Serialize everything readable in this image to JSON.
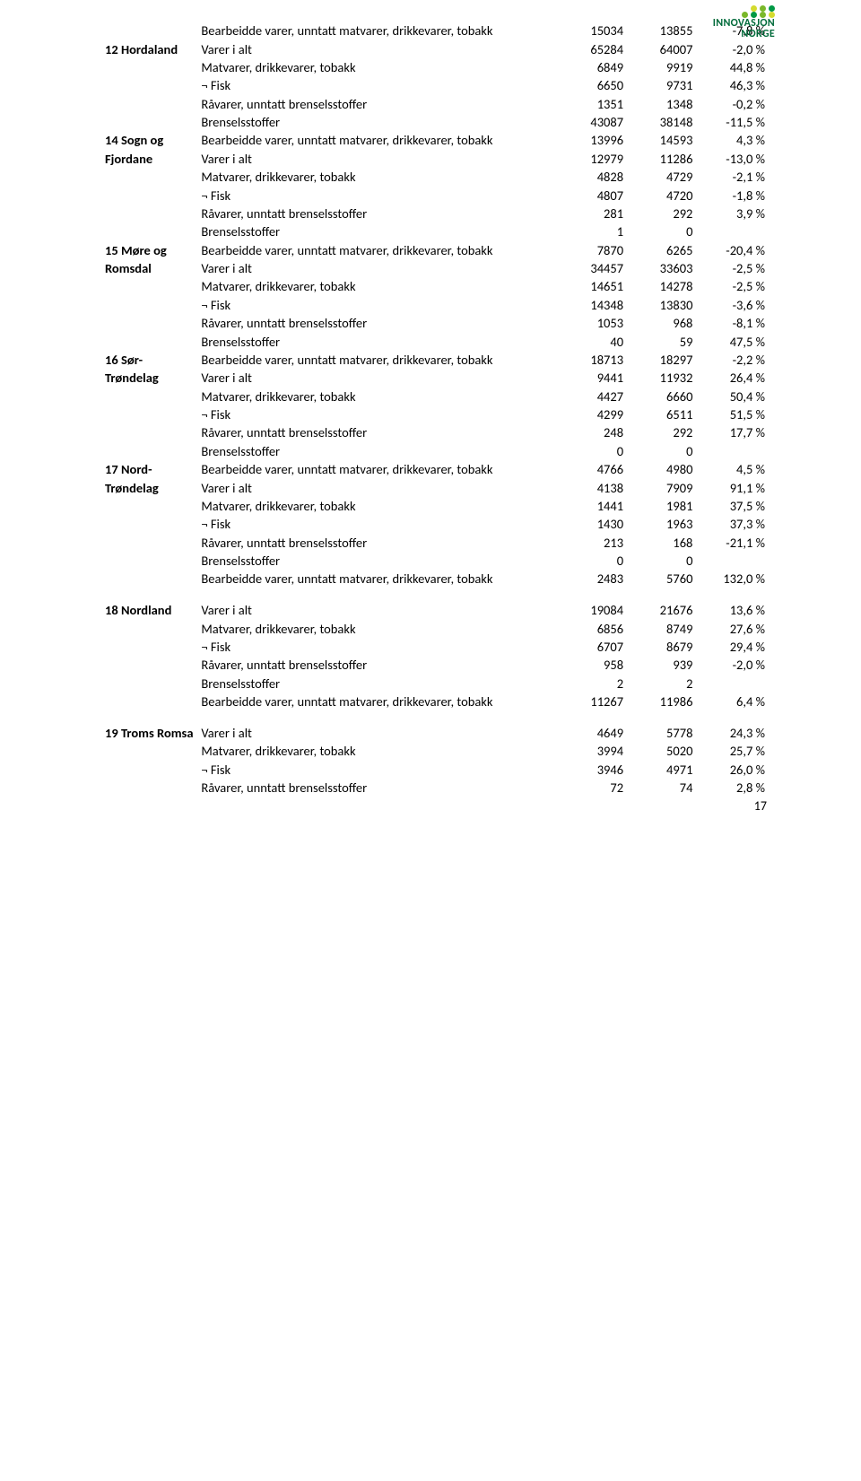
{
  "logo": {
    "line1": "INNOVASJON",
    "line2": "NORGE",
    "dot_colors_top": [
      "#d4db2e",
      "#7ab82a",
      "#009944"
    ],
    "dot_colors_bottom": [
      "#7ab82a",
      "#009944",
      "#7ab82a",
      "#d4db2e"
    ]
  },
  "page_number": "17",
  "row_labels": {
    "bearbeidde_pre": "Bearbeidde varer, unntatt matvarer, drikkevarer, tobakk",
    "varer": "Varer i alt",
    "matvarer": "Matvarer, drikkevarer, tobakk",
    "fisk": "¬ Fisk",
    "ravarer": "Råvarer, unntatt brenselsstoffer",
    "brensel": "Brenselsstoffer",
    "bearbeidde": "Bearbeidde varer, unntatt matvarer, drikkevarer, tobakk"
  },
  "top_row": {
    "v1": "15034",
    "v2": "13855",
    "pct": "-7,8 %"
  },
  "regions": [
    {
      "name_lines": [
        "12 Hordaland"
      ],
      "varer": {
        "v1": "65284",
        "v2": "64007",
        "pct": "-2,0 %"
      },
      "matvarer": {
        "v1": "6849",
        "v2": "9919",
        "pct": "44,8 %"
      },
      "fisk": {
        "v1": "6650",
        "v2": "9731",
        "pct": "46,3 %"
      },
      "ravarer": {
        "v1": "1351",
        "v2": "1348",
        "pct": "-0,2 %"
      },
      "brensel": {
        "v1": "43087",
        "v2": "38148",
        "pct": "-11,5 %"
      },
      "bearbeidde": {
        "v1": "13996",
        "v2": "14593",
        "pct": "4,3 %"
      }
    },
    {
      "name_lines": [
        "14 Sogn og",
        "Fjordane"
      ],
      "varer": {
        "v1": "12979",
        "v2": "11286",
        "pct": "-13,0 %"
      },
      "matvarer": {
        "v1": "4828",
        "v2": "4729",
        "pct": "-2,1 %"
      },
      "fisk": {
        "v1": "4807",
        "v2": "4720",
        "pct": "-1,8 %"
      },
      "ravarer": {
        "v1": "281",
        "v2": "292",
        "pct": "3,9 %"
      },
      "brensel": {
        "v1": "1",
        "v2": "0",
        "pct": ""
      },
      "bearbeidde": {
        "v1": "7870",
        "v2": "6265",
        "pct": "-20,4 %"
      }
    },
    {
      "name_lines": [
        "15 Møre og",
        "Romsdal"
      ],
      "varer": {
        "v1": "34457",
        "v2": "33603",
        "pct": "-2,5 %"
      },
      "matvarer": {
        "v1": "14651",
        "v2": "14278",
        "pct": "-2,5 %"
      },
      "fisk": {
        "v1": "14348",
        "v2": "13830",
        "pct": "-3,6 %"
      },
      "ravarer": {
        "v1": "1053",
        "v2": "968",
        "pct": "-8,1 %"
      },
      "brensel": {
        "v1": "40",
        "v2": "59",
        "pct": "47,5 %"
      },
      "bearbeidde": {
        "v1": "18713",
        "v2": "18297",
        "pct": "-2,2 %"
      }
    },
    {
      "name_lines": [
        "16 Sør-",
        "Trøndelag"
      ],
      "varer": {
        "v1": "9441",
        "v2": "11932",
        "pct": "26,4 %"
      },
      "matvarer": {
        "v1": "4427",
        "v2": "6660",
        "pct": "50,4 %"
      },
      "fisk": {
        "v1": "4299",
        "v2": "6511",
        "pct": "51,5 %"
      },
      "ravarer": {
        "v1": "248",
        "v2": "292",
        "pct": "17,7 %"
      },
      "brensel": {
        "v1": "0",
        "v2": "0",
        "pct": ""
      },
      "bearbeidde": {
        "v1": "4766",
        "v2": "4980",
        "pct": "4,5 %"
      }
    },
    {
      "name_lines": [
        "17 Nord-",
        "Trøndelag"
      ],
      "varer": {
        "v1": "4138",
        "v2": "7909",
        "pct": "91,1 %"
      },
      "matvarer": {
        "v1": "1441",
        "v2": "1981",
        "pct": "37,5 %"
      },
      "fisk": {
        "v1": "1430",
        "v2": "1963",
        "pct": "37,3 %"
      },
      "ravarer": {
        "v1": "213",
        "v2": "168",
        "pct": "-21,1 %"
      },
      "brensel": {
        "v1": "0",
        "v2": "0",
        "pct": ""
      },
      "bearbeidde": {
        "v1": "2483",
        "v2": "5760",
        "pct": "132,0 %"
      }
    },
    {
      "name_lines": [
        "18 Nordland"
      ],
      "varer": {
        "v1": "19084",
        "v2": "21676",
        "pct": "13,6 %"
      },
      "matvarer": {
        "v1": "6856",
        "v2": "8749",
        "pct": "27,6 %"
      },
      "fisk": {
        "v1": "6707",
        "v2": "8679",
        "pct": "29,4 %"
      },
      "ravarer": {
        "v1": "958",
        "v2": "939",
        "pct": "-2,0 %"
      },
      "brensel": {
        "v1": "2",
        "v2": "2",
        "pct": ""
      },
      "bearbeidde": {
        "v1": "11267",
        "v2": "11986",
        "pct": "6,4 %"
      },
      "spacer_before": true
    },
    {
      "name_lines": [
        "19 Troms Romsa"
      ],
      "varer": {
        "v1": "4649",
        "v2": "5778",
        "pct": "24,3 %"
      },
      "matvarer": {
        "v1": "3994",
        "v2": "5020",
        "pct": "25,7 %"
      },
      "fisk": {
        "v1": "3946",
        "v2": "4971",
        "pct": "26,0 %"
      },
      "ravarer": {
        "v1": "72",
        "v2": "74",
        "pct": "2,8 %"
      },
      "brensel": null,
      "bearbeidde": null,
      "spacer_before": true
    }
  ]
}
